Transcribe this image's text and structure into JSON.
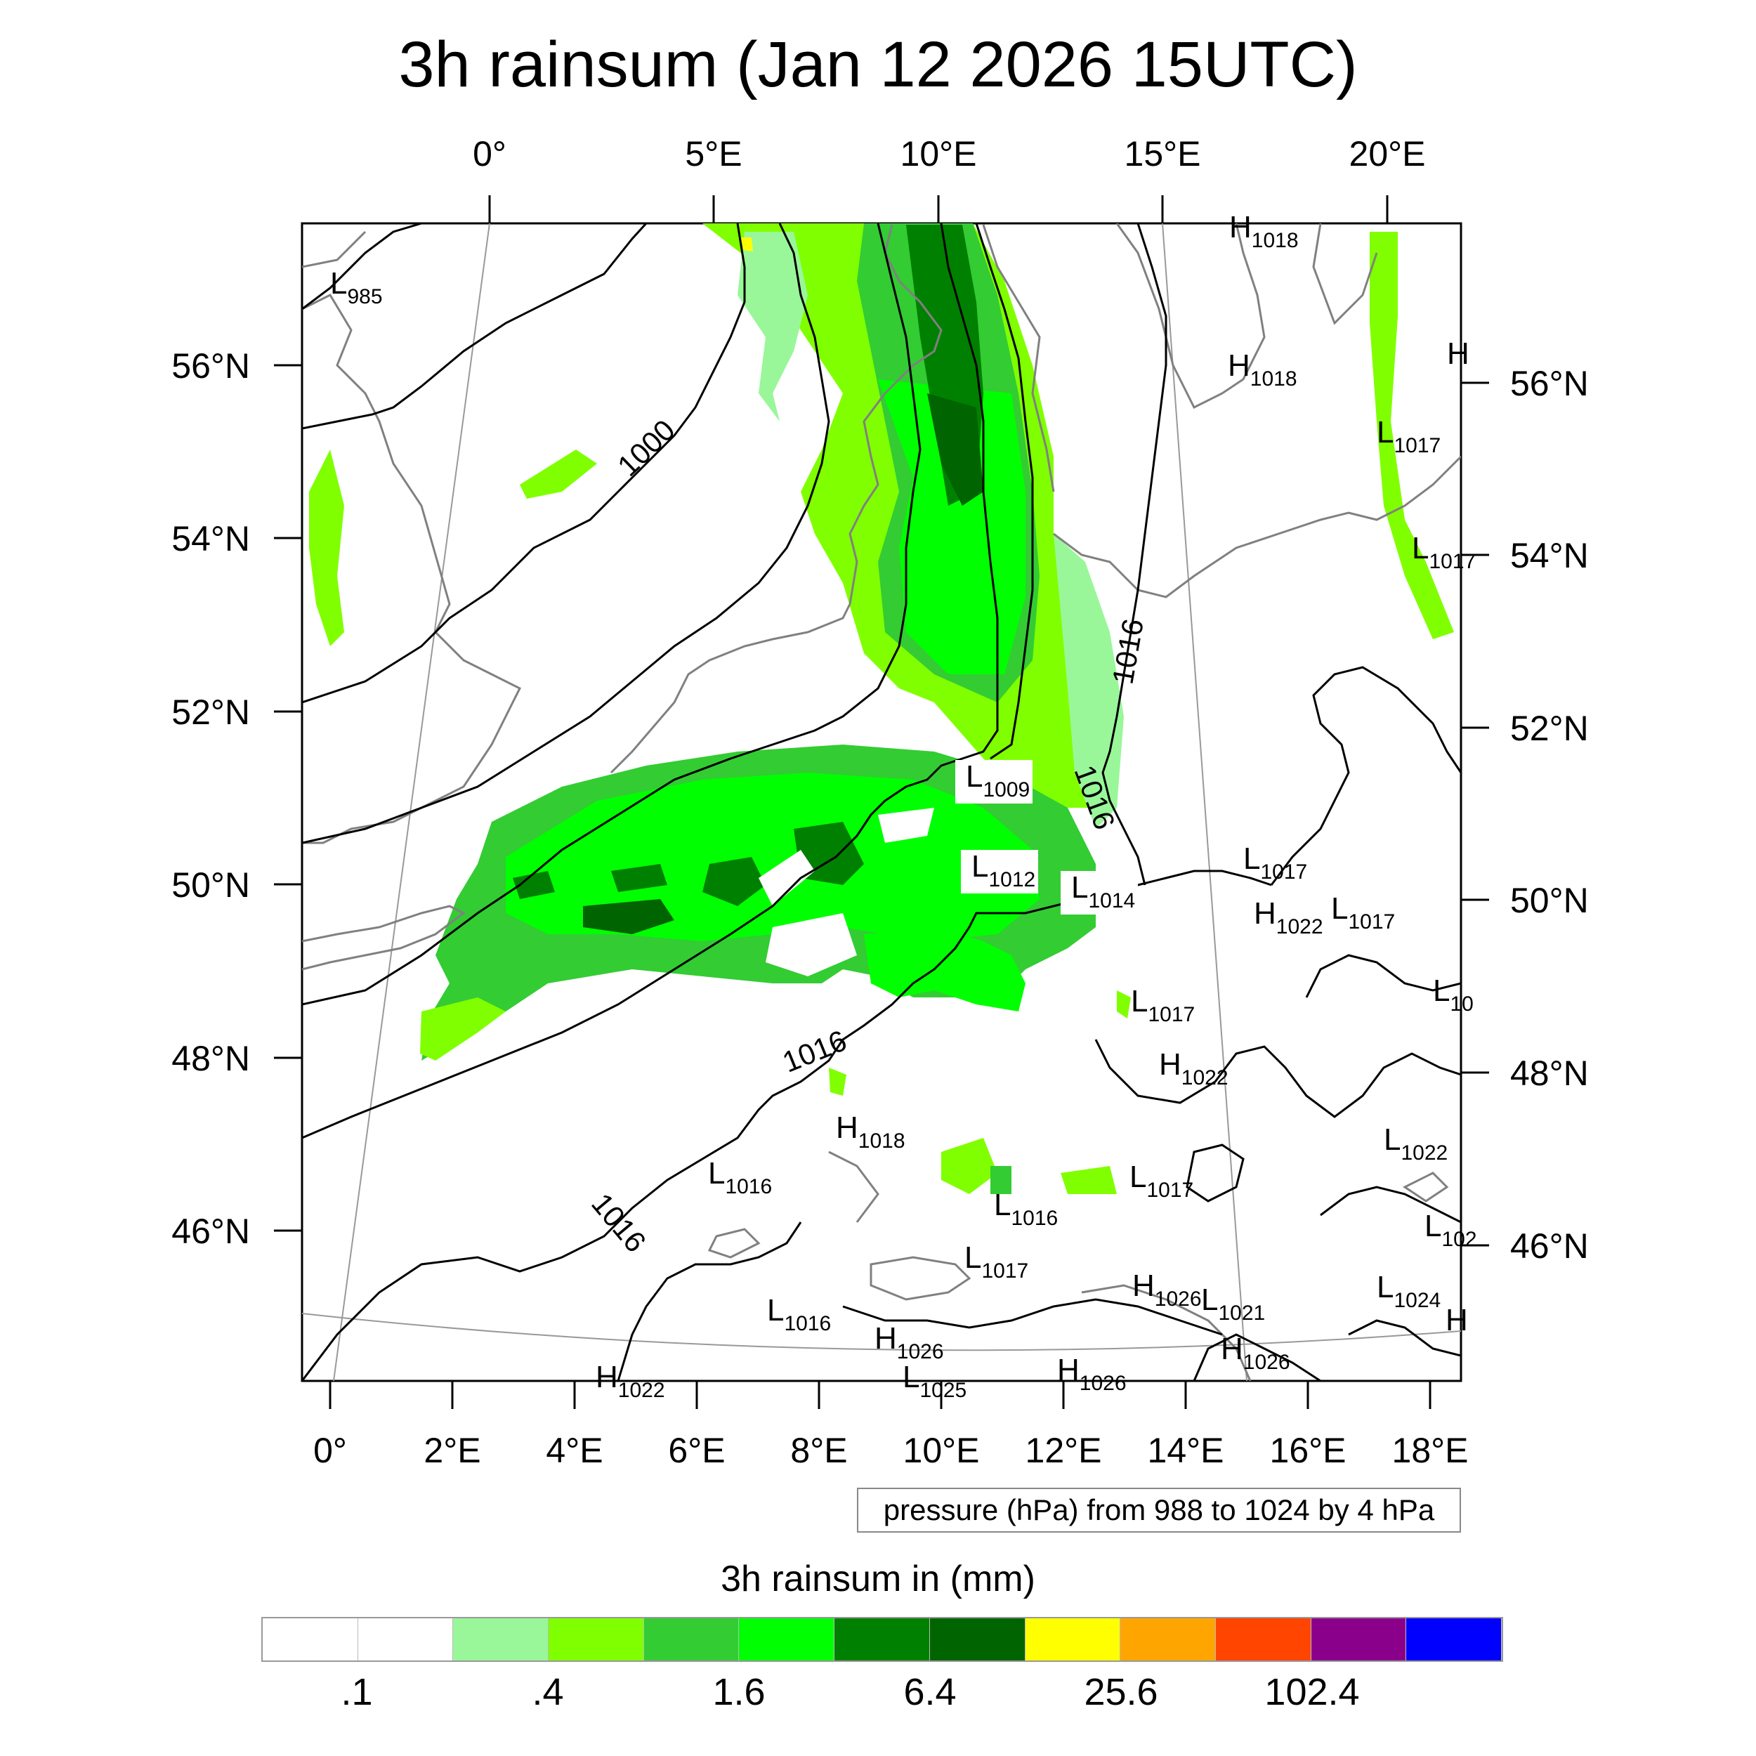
{
  "title": "3h rainsum (Jan 12 2026 15UTC)",
  "top_lon_labels": [
    "0°",
    "5°E",
    "10°E",
    "15°E",
    "20°E"
  ],
  "bottom_lon_labels": [
    "0°",
    "2°E",
    "4°E",
    "6°E",
    "8°E",
    "10°E",
    "12°E",
    "14°E",
    "16°E",
    "18°E"
  ],
  "left_lat_labels": [
    "56°N",
    "54°N",
    "52°N",
    "50°N",
    "48°N",
    "46°N"
  ],
  "right_lat_labels": [
    "56°N",
    "54°N",
    "52°N",
    "50°N",
    "48°N",
    "46°N"
  ],
  "isobar_labels": [
    "1000",
    "1016",
    "1016",
    "1016",
    "1016"
  ],
  "pressure_centers": [
    {
      "type": "L",
      "value": "985"
    },
    {
      "type": "H",
      "value": "1018"
    },
    {
      "type": "H",
      "value": "1018"
    },
    {
      "type": "H",
      "value": ""
    },
    {
      "type": "L",
      "value": "1017"
    },
    {
      "type": "L",
      "value": "1017"
    },
    {
      "type": "L",
      "value": "1009"
    },
    {
      "type": "L",
      "value": "1012"
    },
    {
      "type": "L",
      "value": "1014"
    },
    {
      "type": "L",
      "value": "1017"
    },
    {
      "type": "H",
      "value": "1022"
    },
    {
      "type": "L",
      "value": "1017"
    },
    {
      "type": "L",
      "value": "10"
    },
    {
      "type": "L",
      "value": "1017"
    },
    {
      "type": "H",
      "value": "1022"
    },
    {
      "type": "H",
      "value": "1018"
    },
    {
      "type": "L",
      "value": "1016"
    },
    {
      "type": "L",
      "value": "1022"
    },
    {
      "type": "L",
      "value": "1017"
    },
    {
      "type": "L",
      "value": "1016"
    },
    {
      "type": "L",
      "value": "102"
    },
    {
      "type": "L",
      "value": "1017"
    },
    {
      "type": "H",
      "value": "1026"
    },
    {
      "type": "L",
      "value": "1021"
    },
    {
      "type": "L",
      "value": "1024"
    },
    {
      "type": "L",
      "value": "1016"
    },
    {
      "type": "H",
      "value": "1026"
    },
    {
      "type": "H",
      "value": ""
    },
    {
      "type": "H",
      "value": "1026"
    },
    {
      "type": "H",
      "value": "1022"
    },
    {
      "type": "L",
      "value": "1025"
    },
    {
      "type": "H",
      "value": "1026"
    }
  ],
  "info_box": "pressure (hPa) from 988 to 1024 by 4 hPa",
  "colorbar": {
    "title": "3h rainsum in (mm)",
    "colors": [
      "#ffffff",
      "#ffffff",
      "#99f799",
      "#80ff00",
      "#33cc33",
      "#00ff00",
      "#008000",
      "#006400",
      "#ffff00",
      "#ffa500",
      "#ff4500",
      "#8b008b",
      "#0000ff"
    ],
    "labels": [
      ".1",
      ".4",
      "1.6",
      "6.4",
      "25.6",
      "102.4"
    ]
  }
}
